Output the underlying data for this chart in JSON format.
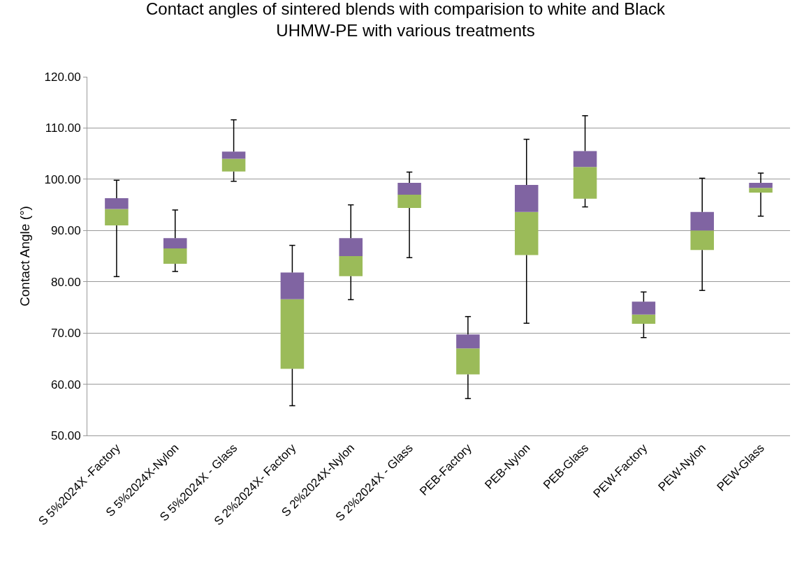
{
  "chart_data": {
    "type": "box",
    "title": "Contact angles of sintered blends with comparision to white and Black\nUHMW-PE with various treatments",
    "ylabel": "Contact Angle (°)",
    "categories": [
      "S 5%2024X -Factory",
      "S 5%2024X-Nylon",
      "S 5%2024X - Glass",
      "S 2%2024X- Factory",
      "S 2%2024X-Nylon",
      "S 2%2024X - Glass",
      "PEB-Factory",
      "PEB-Nylon",
      "PEB-Glass",
      "PEW-Factory",
      "PEW-Nylon",
      "PEW-Glass"
    ],
    "series": [
      {
        "color": "#8064a2",
        "colors": [
          "#9bbb59",
          "#9bbb59",
          "#9bbb59",
          "#9bbb59",
          "#9bbb59",
          "#9bbb59",
          "#9bbb59",
          "#9bbb59",
          "#9bbb59",
          "#9bbb59",
          "#9bbb59",
          "#9bbb59"
        ],
        "boxes": [
          {
            "low": 81.0,
            "q1": 91.0,
            "median": 94.2,
            "q3": 96.3,
            "high": 99.8
          },
          {
            "low": 82.0,
            "q1": 83.5,
            "median": 86.5,
            "q3": 88.5,
            "high": 94.0
          },
          {
            "low": 99.6,
            "q1": 101.5,
            "median": 104.0,
            "q3": 105.4,
            "high": 111.6
          },
          {
            "low": 55.8,
            "q1": 63.0,
            "median": 76.6,
            "q3": 81.8,
            "high": 87.1
          },
          {
            "low": 76.5,
            "q1": 81.1,
            "median": 85.0,
            "q3": 88.5,
            "high": 95.0
          },
          {
            "low": 84.7,
            "q1": 94.4,
            "median": 97.0,
            "q3": 99.3,
            "high": 101.4
          },
          {
            "low": 57.2,
            "q1": 61.9,
            "median": 67.0,
            "q3": 69.7,
            "high": 73.2
          },
          {
            "low": 71.9,
            "q1": 85.2,
            "median": 93.6,
            "q3": 98.9,
            "high": 107.8
          },
          {
            "low": 94.6,
            "q1": 96.2,
            "median": 102.4,
            "q3": 105.5,
            "high": 112.4
          },
          {
            "low": 69.1,
            "q1": 71.8,
            "median": 73.6,
            "q3": 76.1,
            "high": 78.0
          },
          {
            "low": 78.3,
            "q1": 86.2,
            "median": 90.0,
            "q3": 93.6,
            "high": 100.2
          },
          {
            "low": 92.8,
            "q1": 97.4,
            "median": 98.3,
            "q3": 99.3,
            "high": 101.2
          }
        ]
      }
    ],
    "ylim": [
      50,
      120
    ],
    "yticks": [
      {
        "value": 50,
        "label": "50.00"
      },
      {
        "value": 60,
        "label": "60.00"
      },
      {
        "value": 70,
        "label": "70.00"
      },
      {
        "value": 80,
        "label": "80.00"
      },
      {
        "value": 90,
        "label": "90.00"
      },
      {
        "value": 100,
        "label": "100.00"
      },
      {
        "value": 110,
        "label": "110.00"
      },
      {
        "value": 120,
        "label": "120.00"
      }
    ],
    "grid": "y"
  }
}
